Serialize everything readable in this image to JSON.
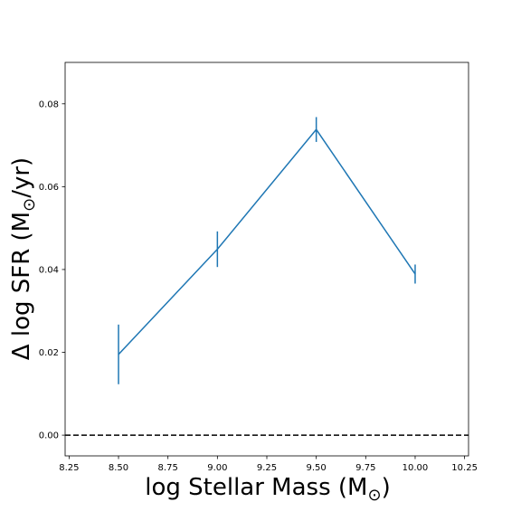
{
  "chart_data": {
    "type": "line",
    "xlabel_main": "log Stellar Mass (M",
    "xlabel_unit": ")",
    "ylabel_main": "Δ log SFR (M",
    "ylabel_unit": "/yr)",
    "sun_symbol": "⊙",
    "xlim": [
      8.23,
      10.27
    ],
    "ylim": [
      -0.005,
      0.09
    ],
    "x_ticks": [
      8.25,
      8.5,
      8.75,
      9.0,
      9.25,
      9.5,
      9.75,
      10.0,
      10.25
    ],
    "x_tick_labels": [
      "8.25",
      "8.50",
      "8.75",
      "9.00",
      "9.25",
      "9.50",
      "9.75",
      "10.00",
      "10.25"
    ],
    "y_ticks": [
      0.0,
      0.02,
      0.04,
      0.06,
      0.08
    ],
    "y_tick_labels": [
      "0.00",
      "0.02",
      "0.04",
      "0.06",
      "0.08"
    ],
    "series": [
      {
        "x": [
          8.5,
          9.0,
          9.5,
          10.0
        ],
        "y": [
          0.0195,
          0.0449,
          0.0738,
          0.0389
        ],
        "yerr": [
          0.0072,
          0.0043,
          0.003,
          0.0023
        ],
        "color": "#1f77b4"
      }
    ],
    "hline": {
      "y": 0.0,
      "style": "dashed",
      "color": "#000000"
    },
    "grid": false
  }
}
